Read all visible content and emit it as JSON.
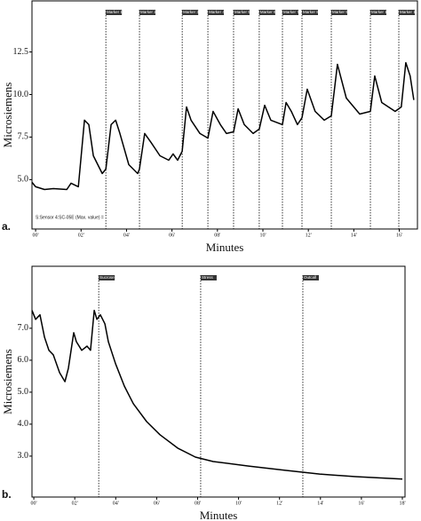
{
  "chart_data": [
    {
      "type": "line",
      "panel_label": "a.",
      "y_label": "Microsiemens",
      "x_label": "Minutes",
      "annotation": "S:Sensor 4:SC-05E (Max. value) =",
      "color": "#000000",
      "xlim": [
        -0.16,
        16.8
      ],
      "ylim": [
        2.1,
        15.5
      ],
      "xticks": [
        {
          "value": 0,
          "label": "00'"
        },
        {
          "value": 2,
          "label": "02'"
        },
        {
          "value": 4,
          "label": "04'"
        },
        {
          "value": 6,
          "label": "06'"
        },
        {
          "value": 8,
          "label": "08'"
        },
        {
          "value": 10,
          "label": "10'"
        },
        {
          "value": 12,
          "label": "12'"
        },
        {
          "value": 14,
          "label": "14'"
        },
        {
          "value": 16,
          "label": "16'"
        }
      ],
      "yticks": [
        {
          "value": 5,
          "label": "5.0"
        },
        7.5,
        {
          "value": 10,
          "label": "10.0"
        },
        12.5
      ],
      "markers": [
        {
          "x": 3.09,
          "label": "Marker 1"
        },
        {
          "x": 4.57,
          "label": "Marker 2"
        },
        {
          "x": 6.45,
          "label": "Marker 3"
        },
        {
          "x": 7.58,
          "label": "Marker 4"
        },
        {
          "x": 8.71,
          "label": "Marker 5"
        },
        {
          "x": 9.84,
          "label": "Marker 6"
        },
        {
          "x": 10.86,
          "label": "Marker 7"
        },
        {
          "x": 11.72,
          "label": "Marker 8"
        },
        {
          "x": 13.01,
          "label": "Marker 9"
        },
        {
          "x": 14.73,
          "label": "Marker 10"
        },
        {
          "x": 15.98,
          "label": "Marker 11"
        }
      ],
      "x": [
        -0.16,
        0,
        0.39,
        0.78,
        1.37,
        1.56,
        1.88,
        2.15,
        2.34,
        2.54,
        2.93,
        3.09,
        3.32,
        3.52,
        3.71,
        4.1,
        4.49,
        4.57,
        4.8,
        5.08,
        5.47,
        5.86,
        6.05,
        6.25,
        6.45,
        6.64,
        6.84,
        7.23,
        7.58,
        7.81,
        8.13,
        8.4,
        8.71,
        8.91,
        9.18,
        9.57,
        9.84,
        10.08,
        10.35,
        10.86,
        11.02,
        11.25,
        11.52,
        11.72,
        11.95,
        12.3,
        12.7,
        13.01,
        13.28,
        13.67,
        14.26,
        14.73,
        14.92,
        15.23,
        15.82,
        16.09,
        16.29,
        16.48,
        16.64
      ],
      "values": [
        4.84,
        4.58,
        4.42,
        4.47,
        4.42,
        4.79,
        4.58,
        8.49,
        8.23,
        6.4,
        5.36,
        5.62,
        8.23,
        8.49,
        7.71,
        5.88,
        5.36,
        5.62,
        7.71,
        7.18,
        6.4,
        6.14,
        6.51,
        6.14,
        6.66,
        9.27,
        8.49,
        7.71,
        7.44,
        9.01,
        8.23,
        7.71,
        7.81,
        9.16,
        8.23,
        7.71,
        7.97,
        9.37,
        8.49,
        8.23,
        9.53,
        9.01,
        8.23,
        8.64,
        10.31,
        9.01,
        8.49,
        8.75,
        11.77,
        9.79,
        8.85,
        9.01,
        11.09,
        9.53,
        9.01,
        9.27,
        11.87,
        11.09,
        9.68
      ]
    },
    {
      "type": "line",
      "panel_label": "b.",
      "y_label": "Microsiemens",
      "x_label": "Minutes",
      "color": "#000000",
      "xlim": [
        -0.09,
        18.13
      ],
      "ylim": [
        1.72,
        8.94
      ],
      "xticks": [
        {
          "value": 0,
          "label": "00'"
        },
        {
          "value": 2,
          "label": "02'"
        },
        {
          "value": 4,
          "label": "04'"
        },
        {
          "value": 6,
          "label": "06'"
        },
        {
          "value": 8,
          "label": "08'"
        },
        {
          "value": 10,
          "label": "10'"
        },
        {
          "value": 12,
          "label": "12'"
        },
        {
          "value": 14,
          "label": "14'"
        },
        {
          "value": 16,
          "label": "16'"
        },
        {
          "value": 18,
          "label": "18'"
        }
      ],
      "yticks": [
        {
          "value": 3,
          "label": "3.0"
        },
        {
          "value": 4,
          "label": "4.0"
        },
        {
          "value": 5,
          "label": "5.0"
        },
        {
          "value": 6,
          "label": "6.0"
        },
        {
          "value": 7,
          "label": "7.0"
        }
      ],
      "markers": [
        {
          "x": 3.17,
          "label": "Sucrose"
        },
        {
          "x": 8.15,
          "label": "Stress"
        },
        {
          "x": 13.14,
          "label": "Outcall"
        }
      ],
      "x": [
        -0.09,
        0.09,
        0.3,
        0.52,
        0.74,
        0.95,
        1.26,
        1.52,
        1.69,
        1.95,
        2.08,
        2.34,
        2.6,
        2.77,
        2.95,
        3.08,
        3.25,
        3.47,
        3.64,
        3.99,
        4.42,
        4.86,
        5.51,
        6.16,
        7.03,
        7.89,
        8.76,
        10.49,
        12.23,
        13.96,
        15.7,
        18.0
      ],
      "values": [
        7.56,
        7.28,
        7.42,
        6.72,
        6.31,
        6.17,
        5.61,
        5.33,
        5.75,
        6.86,
        6.58,
        6.31,
        6.44,
        6.31,
        7.56,
        7.28,
        7.42,
        7.14,
        6.58,
        5.89,
        5.19,
        4.64,
        4.08,
        3.67,
        3.25,
        2.97,
        2.83,
        2.69,
        2.56,
        2.44,
        2.36,
        2.28
      ]
    }
  ]
}
